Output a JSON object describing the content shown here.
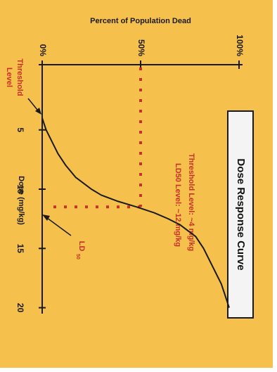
{
  "chart_data": {
    "type": "line",
    "title": "Dose Response Curve",
    "xlabel": "Dose (mg/kg)",
    "ylabel": "Percent of Population Dead",
    "x": [
      4,
      4.5,
      5,
      6,
      7,
      8,
      9,
      10,
      10.5,
      11,
      11.5,
      12,
      12.5,
      13,
      14,
      15,
      16,
      17,
      18,
      19,
      20
    ],
    "values": [
      0,
      1,
      2,
      5,
      8,
      12,
      17,
      25,
      30,
      38,
      48,
      57,
      64,
      70,
      78,
      82,
      85,
      88,
      91,
      93,
      95
    ],
    "color": "#1a1a1a",
    "xlim": [
      -0.5,
      20.5
    ],
    "xticks": [
      5,
      10,
      15,
      20
    ],
    "ylim": [
      0,
      100
    ],
    "yticks": [
      {
        "value": 0,
        "label": "0%"
      },
      {
        "value": 50,
        "label": "50%"
      },
      {
        "value": 100,
        "label": "100%"
      }
    ],
    "annotations": [
      {
        "lines": [
          "Threshold",
          "Level"
        ]
      },
      {
        "text": "LD",
        "subscript": "50"
      },
      "Threshold Level: ~4 mg/kg",
      "LD50 Level: ~12 mg/kg"
    ]
  }
}
